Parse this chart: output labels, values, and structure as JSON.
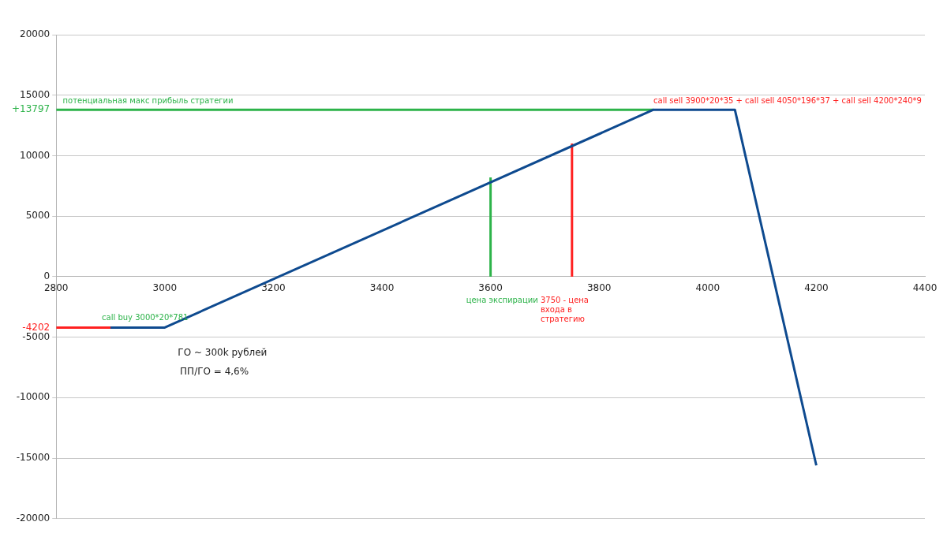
{
  "chart_data": {
    "type": "line",
    "series": [
      {
        "color": "#0e4a8f",
        "x": [
          2900,
          3000,
          3900,
          4050,
          4200
        ],
        "values": [
          -4202,
          -4202,
          13797,
          13797,
          -15600
        ]
      },
      {
        "color": "#2db34a",
        "x": [
          2800,
          3900
        ],
        "values": [
          13797,
          13797
        ]
      },
      {
        "color": "#ff2020",
        "x": [
          2800,
          2900
        ],
        "values": [
          -4202,
          -4202
        ]
      },
      {
        "color": "#2db34a",
        "x": [
          3600,
          3600
        ],
        "values": [
          0,
          8200
        ]
      },
      {
        "color": "#ff2020",
        "x": [
          3750,
          3750
        ],
        "values": [
          0,
          11000
        ]
      }
    ],
    "xlim": [
      2800,
      4400
    ],
    "xticks": [
      2800,
      3000,
      3200,
      3400,
      3600,
      3800,
      4000,
      4200,
      4400
    ],
    "ylim": [
      -20000,
      20000
    ],
    "yticks": [
      -20000,
      -15000,
      -10000,
      -5000,
      {
        "value": -4202,
        "label": "-4202"
      },
      0,
      5000,
      10000,
      {
        "value": 13797,
        "label": "+13797"
      },
      15000,
      20000
    ],
    "grid": "y",
    "marker": "none",
    "line_style": "solid",
    "annotations": [
      "потенциальная макс прибыль стратегии",
      "call sell 3900*20*35 + call sell 4050*196*37 + call sell 4200*240*9",
      "call buy 3000*20*781",
      "цена экспирации",
      "3750 - цена входа в стратегию",
      "ГО ~ 300k рублей",
      "ПП/ГО = 4,6%"
    ]
  }
}
